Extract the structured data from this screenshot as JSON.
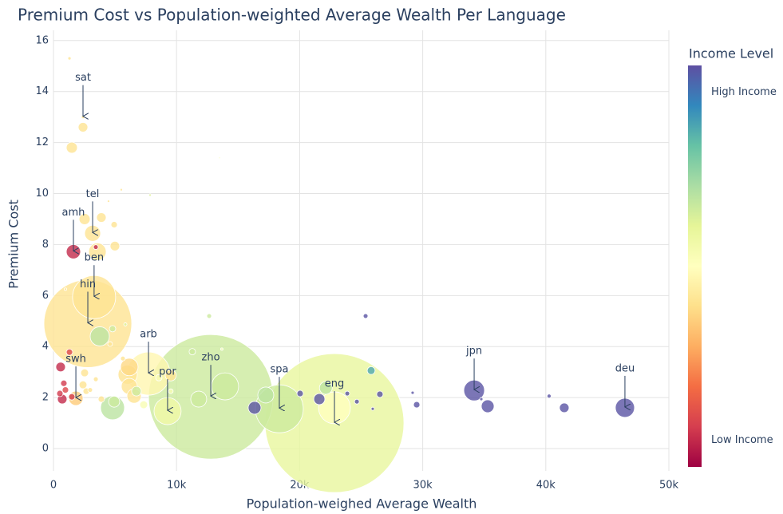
{
  "chart_data": {
    "type": "scatter",
    "title": "Premium Cost vs Population-weighted Average Wealth Per Language",
    "x_label": "Population-weighed Average Wealth",
    "y_label": "Premium Cost",
    "xlim": [
      0,
      50000
    ],
    "xticks": [
      0,
      {
        "value": 10000,
        "label": "10k"
      },
      {
        "value": 20000,
        "label": "20k"
      },
      {
        "value": 30000,
        "label": "30k"
      },
      {
        "value": 40000,
        "label": "40k"
      },
      {
        "value": 50000,
        "label": "50k"
      }
    ],
    "ylim": [
      -0.875,
      16.4
    ],
    "yticks": [
      0,
      2,
      4,
      6,
      8,
      10,
      12,
      14,
      16
    ],
    "grid": true,
    "colorscale": [
      "#9e0142",
      "#d53e4f",
      "#f46d43",
      "#fdae61",
      "#fee08b",
      "#ffffbf",
      "#e6f598",
      "#abdda4",
      "#66c2a5",
      "#3288bd",
      "#5e4fa2"
    ],
    "colorbar": {
      "title": "Income Level",
      "lim": [
        0.77,
        4.23
      ],
      "ticks": [
        {
          "value": 1,
          "label": "Low Income"
        },
        {
          "value": 4,
          "label": "High Income"
        }
      ]
    },
    "x": [
      22830,
      12780,
      18350,
      2790,
      22830,
      3300,
      7720,
      13940,
      4800,
      9270,
      3760,
      34180,
      46430,
      1820,
      1620,
      3180,
      2400,
      1300,
      1490,
      2400,
      5510,
      7850,
      2530,
      3890,
      4930,
      4990,
      3570,
      3440,
      4470,
      970,
      4600,
      4800,
      5840,
      12650,
      13490,
      25360,
      11280,
      13680,
      1300,
      580,
      840,
      970,
      520,
      710,
      1490,
      2530,
      2400,
      2660,
      2980,
      3440,
      3890,
      4930,
      6160,
      6030,
      6160,
      6550,
      6740,
      7330,
      5640,
      8560,
      9530,
      9530,
      11800,
      16340,
      17250,
      20040,
      21600,
      22130,
      23870,
      24650,
      25810,
      25940,
      26520,
      29180,
      29510,
      35280,
      34760,
      40270,
      41500
    ],
    "y": [
      1.0,
      2.03,
      1.56,
      4.9,
      1.6,
      5.94,
      2.94,
      2.44,
      1.6,
      1.47,
      4.4,
      2.28,
      1.6,
      1.97,
      7.72,
      8.44,
      13.0,
      15.3,
      11.8,
      12.6,
      10.15,
      9.94,
      9.0,
      9.06,
      8.78,
      7.94,
      7.72,
      7.9,
      9.7,
      6.25,
      4.1,
      4.7,
      4.87,
      5.2,
      11.4,
      5.2,
      3.8,
      3.9,
      3.78,
      3.2,
      2.56,
      2.3,
      2.16,
      1.94,
      2.03,
      2.97,
      2.5,
      2.25,
      2.3,
      2.72,
      1.94,
      1.84,
      3.2,
      2.9,
      2.44,
      2.06,
      2.25,
      1.72,
      3.53,
      2.78,
      2.87,
      2.25,
      1.94,
      1.6,
      2.1,
      2.16,
      1.94,
      2.38,
      2.16,
      1.84,
      3.06,
      1.56,
      2.13,
      2.19,
      1.72,
      1.66,
      1.94,
      2.06,
      1.6
    ],
    "sizes": [
      1892,
      1521,
      225,
      756,
      100,
      182,
      182,
      72,
      56,
      72,
      36,
      42,
      36,
      20,
      20,
      25,
      1,
      1,
      12,
      9,
      0.6,
      0.6,
      12,
      9,
      4,
      9,
      30,
      2.2,
      0.6,
      0.6,
      2.2,
      4,
      1,
      2.2,
      0.25,
      2.2,
      4,
      0.6,
      4,
      9,
      4,
      4,
      4,
      9,
      4,
      6,
      6,
      4,
      2.2,
      2.2,
      4,
      12,
      30,
      36,
      25,
      20,
      9,
      6,
      2.2,
      4,
      12,
      2.2,
      25,
      16,
      25,
      4,
      12,
      16,
      2.2,
      2.2,
      6,
      1,
      4,
      1,
      4,
      16,
      1,
      1.6,
      9
    ],
    "colors": [
      2.8,
      3.0,
      3.0,
      2.2,
      2.5,
      2.2,
      2.4,
      3.0,
      3.1,
      2.7,
      3.1,
      4.2,
      4.2,
      2.0,
      1.0,
      2.2,
      2.2,
      2.2,
      2.2,
      2.2,
      2.2,
      2.9,
      2.2,
      2.2,
      2.2,
      2.2,
      2.2,
      1.0,
      2.2,
      2.2,
      2.2,
      3.0,
      2.9,
      3.0,
      2.6,
      4.2,
      3.0,
      2.6,
      1.2,
      1.0,
      1.1,
      1.2,
      1.1,
      1.0,
      1.1,
      2.2,
      2.2,
      2.2,
      2.2,
      2.2,
      2.2,
      3.0,
      2.1,
      2.2,
      2.2,
      2.2,
      3.0,
      2.6,
      2.2,
      2.6,
      2.2,
      2.6,
      3.0,
      4.2,
      3.1,
      4.2,
      4.2,
      3.1,
      4.2,
      4.2,
      3.7,
      4.2,
      4.2,
      4.2,
      4.2,
      4.2,
      4.2,
      4.2,
      4.2
    ],
    "annotations": [
      {
        "text": "sat",
        "x": 2400,
        "y": 13.0
      },
      {
        "text": "tel",
        "x": 3180,
        "y": 8.44
      },
      {
        "text": "amh",
        "x": 1620,
        "y": 7.72
      },
      {
        "text": "ben",
        "x": 3300,
        "y": 5.94
      },
      {
        "text": "hin",
        "x": 2790,
        "y": 4.9
      },
      {
        "text": "arb",
        "x": 7720,
        "y": 2.94
      },
      {
        "text": "zho",
        "x": 12780,
        "y": 2.03
      },
      {
        "text": "por",
        "x": 9270,
        "y": 1.47
      },
      {
        "text": "swh",
        "x": 1820,
        "y": 1.97
      },
      {
        "text": "spa",
        "x": 18350,
        "y": 1.56
      },
      {
        "text": "eng",
        "x": 22830,
        "y": 1.0
      },
      {
        "text": "jpn",
        "x": 34180,
        "y": 2.28
      },
      {
        "text": "deu",
        "x": 46430,
        "y": 1.6
      }
    ]
  }
}
